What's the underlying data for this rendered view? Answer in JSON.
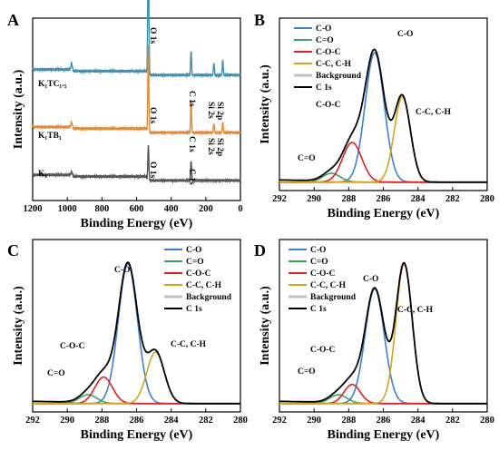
{
  "panels": [
    {
      "label": "A",
      "xlabel": "Binding Energy (eV)",
      "ylabel": "Intensity (a.u.)",
      "xticks": [
        "1200",
        "1000",
        "800",
        "600",
        "400",
        "200",
        "0"
      ],
      "legend": [],
      "annotations": [
        {
          "text": "K₁TC₁.₅"
        },
        {
          "text": "K₁TB₁"
        },
        {
          "text": "K₁"
        },
        {
          "text": "O 1s"
        },
        {
          "text": "C 1s"
        },
        {
          "text": "Si 2s"
        },
        {
          "text": "Si 2p"
        },
        {
          "text": "O 1s"
        },
        {
          "text": "C 1s"
        },
        {
          "text": "Si 2s"
        },
        {
          "text": "Si 2p"
        },
        {
          "text": "O 1s"
        },
        {
          "text": "C 1s"
        }
      ]
    },
    {
      "label": "B",
      "xlabel": "Binding Energy (eV)",
      "ylabel": "Intensity (a.u.)",
      "xticks": [
        "292",
        "290",
        "288",
        "286",
        "284",
        "282",
        "280"
      ],
      "legend": [
        "C-O",
        "C=O",
        "C-O-C",
        "C-C, C-H",
        "Background",
        "C 1s"
      ],
      "annotations": [
        {
          "text": "C-O"
        },
        {
          "text": "C-O-C"
        },
        {
          "text": "C-C, C-H"
        },
        {
          "text": "C=O"
        }
      ]
    },
    {
      "label": "C",
      "xlabel": "Binding Energy (eV)",
      "ylabel": "Intensity (a.u.)",
      "xticks": [
        "292",
        "290",
        "288",
        "286",
        "284",
        "282",
        "280"
      ],
      "legend": [
        "C-O",
        "C=O",
        "C-O-C",
        "C-C, C-H",
        "Background",
        "C 1s"
      ],
      "annotations": [
        {
          "text": "C-O"
        },
        {
          "text": "C-O-C"
        },
        {
          "text": "C-C, C-H"
        },
        {
          "text": "C=O"
        }
      ]
    },
    {
      "label": "D",
      "xlabel": "Binding Energy (eV)",
      "ylabel": "Intensity (a.u.)",
      "xticks": [
        "292",
        "290",
        "288",
        "286",
        "284",
        "282",
        "280"
      ],
      "legend": [
        "C-O",
        "C=O",
        "C-O-C",
        "C-C, C-H",
        "Background",
        "C 1s"
      ],
      "annotations": [
        {
          "text": "C-O"
        },
        {
          "text": "C-O-C"
        },
        {
          "text": "C-C, C-H"
        },
        {
          "text": "C=O"
        }
      ]
    }
  ],
  "chart_data": [
    {
      "type": "line",
      "panel": "A",
      "xlim": [
        1200,
        0
      ],
      "xlabel": "Binding Energy (eV)",
      "ylabel": "Intensity (a.u.)",
      "colors": [
        "#3d8fb5",
        "#e08a3a",
        "#555555"
      ],
      "series": [
        {
          "name": "K₁TC₁.₅",
          "baseline": 0.74,
          "peaks": [
            [
              532,
              0.95,
              7
            ],
            [
              285,
              0.16,
              6
            ],
            [
              153,
              0.08,
              6
            ],
            [
              102,
              0.1,
              6
            ],
            [
              975,
              0.05,
              10
            ]
          ]
        },
        {
          "name": "K₁TB₁",
          "baseline": 0.38,
          "peaks": [
            [
              532,
              0.55,
              7
            ],
            [
              285,
              0.22,
              6
            ],
            [
              153,
              0.06,
              6
            ],
            [
              102,
              0.07,
              6
            ],
            [
              975,
              0.04,
              10
            ]
          ]
        },
        {
          "name": "K₁",
          "baseline": 0.08,
          "peaks": [
            [
              532,
              0.22,
              7
            ],
            [
              285,
              0.13,
              6
            ],
            [
              975,
              0.03,
              10
            ]
          ]
        }
      ]
    },
    {
      "type": "line",
      "panel": "B",
      "xlim": [
        292,
        280
      ],
      "ylim": [
        0,
        1
      ],
      "colors": {
        "C-O": "#3a7fd5",
        "C=O": "#3aa36a",
        "C-O-C": "#e02020",
        "C-C, C-H": "#d9a21b",
        "Background": "#c0c0c0",
        "C 1s": "#000000"
      },
      "series": [
        {
          "name": "C-O",
          "center": 286.5,
          "height": 0.88,
          "fwhm": 1.3
        },
        {
          "name": "C=O",
          "center": 289.0,
          "height": 0.06,
          "fwhm": 1.2
        },
        {
          "name": "C-O-C",
          "center": 287.8,
          "height": 0.27,
          "fwhm": 1.3
        },
        {
          "name": "C-C, C-H",
          "center": 284.9,
          "height": 0.58,
          "fwhm": 1.1
        },
        {
          "name": "Background",
          "value": 0.02
        },
        {
          "name": "C 1s",
          "note": "sum of components"
        }
      ]
    },
    {
      "type": "line",
      "panel": "C",
      "xlim": [
        292,
        280
      ],
      "ylim": [
        0,
        1
      ],
      "colors": {
        "C-O": "#3a7fd5",
        "C=O": "#3aa36a",
        "C-O-C": "#e02020",
        "C-C, C-H": "#d9a21b",
        "Background": "#c0c0c0",
        "C 1s": "#000000"
      },
      "series": [
        {
          "name": "C-O",
          "center": 286.5,
          "height": 0.95,
          "fwhm": 1.3
        },
        {
          "name": "C=O",
          "center": 288.8,
          "height": 0.06,
          "fwhm": 1.2
        },
        {
          "name": "C-O-C",
          "center": 287.9,
          "height": 0.18,
          "fwhm": 1.2
        },
        {
          "name": "C-C, C-H",
          "center": 284.9,
          "height": 0.35,
          "fwhm": 1.2
        },
        {
          "name": "Background",
          "value": 0.02
        },
        {
          "name": "C 1s",
          "note": "sum of components"
        }
      ]
    },
    {
      "type": "line",
      "panel": "D",
      "xlim": [
        292,
        280
      ],
      "ylim": [
        0,
        1
      ],
      "colors": {
        "C-O": "#3a7fd5",
        "C=O": "#3aa36a",
        "C-O-C": "#e02020",
        "C-C, C-H": "#d9a21b",
        "Background": "#c0c0c0",
        "C 1s": "#000000"
      },
      "series": [
        {
          "name": "C-O",
          "center": 286.5,
          "height": 0.78,
          "fwhm": 1.3
        },
        {
          "name": "C=O",
          "center": 288.6,
          "height": 0.06,
          "fwhm": 1.2
        },
        {
          "name": "C-O-C",
          "center": 287.8,
          "height": 0.13,
          "fwhm": 1.1
        },
        {
          "name": "C-C, C-H",
          "center": 284.8,
          "height": 0.95,
          "fwhm": 1.1
        },
        {
          "name": "Background",
          "value": 0.02
        },
        {
          "name": "C 1s",
          "note": "sum of components"
        }
      ]
    }
  ]
}
